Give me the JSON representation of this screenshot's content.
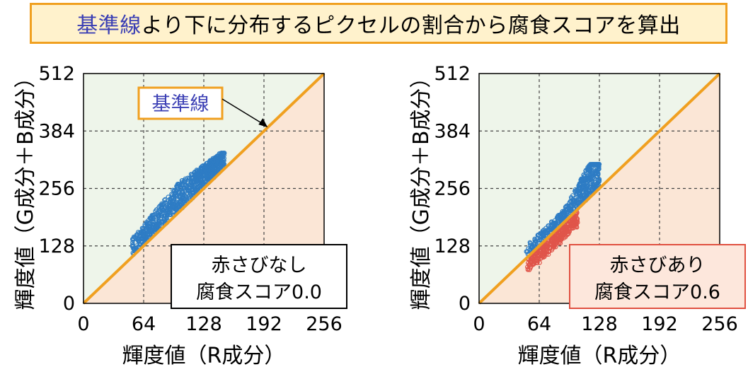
{
  "banner": {
    "highlight": "基準線",
    "rest": "より下に分布するピクセルの割合から腐食スコアを算出"
  },
  "colors": {
    "above_region": "#eef5ea",
    "below_region": "#fbe6d6",
    "reference_line": "#f0a020",
    "points_above": "#2e7cc4",
    "points_below": "#e0554a",
    "banner_bg": "#fff2cc",
    "highlight_text": "#3b3fb4",
    "callout_border_right": "#e05040",
    "callout_bg_right": "#fde7dc"
  },
  "chart_data": [
    {
      "type": "scatter",
      "xlabel": "輝度値（R成分）",
      "ylabel": "輝度値（G成分＋B成分）",
      "xlim": [
        0,
        256
      ],
      "ylim": [
        0,
        512
      ],
      "xticks": [
        "0",
        "64",
        "128",
        "192",
        "256"
      ],
      "yticks": [
        "0",
        "128",
        "256",
        "384",
        "512"
      ],
      "grid": true,
      "reference_line": {
        "label": "基準線",
        "from": [
          0,
          0
        ],
        "to": [
          256,
          512
        ]
      },
      "callout": [
        "赤さびなし",
        "腐食スコア0.0"
      ],
      "point_cloud": {
        "description_below_fraction": 0.0,
        "x_range": [
          52,
          150
        ],
        "y_range": [
          115,
          335
        ]
      }
    },
    {
      "type": "scatter",
      "xlabel": "輝度値（R成分）",
      "ylabel": "輝度値（G成分＋B成分）",
      "xlim": [
        0,
        256
      ],
      "ylim": [
        0,
        512
      ],
      "xticks": [
        "0",
        "64",
        "128",
        "192",
        "256"
      ],
      "yticks": [
        "0",
        "128",
        "256",
        "384",
        "512"
      ],
      "grid": true,
      "reference_line": {
        "from": [
          0,
          0
        ],
        "to": [
          256,
          512
        ]
      },
      "callout": [
        "赤さびあり",
        "腐食スコア0.6"
      ],
      "point_cloud": {
        "description_below_fraction": 0.6,
        "x_range": [
          50,
          128
        ],
        "y_range": [
          95,
          310
        ]
      }
    }
  ]
}
